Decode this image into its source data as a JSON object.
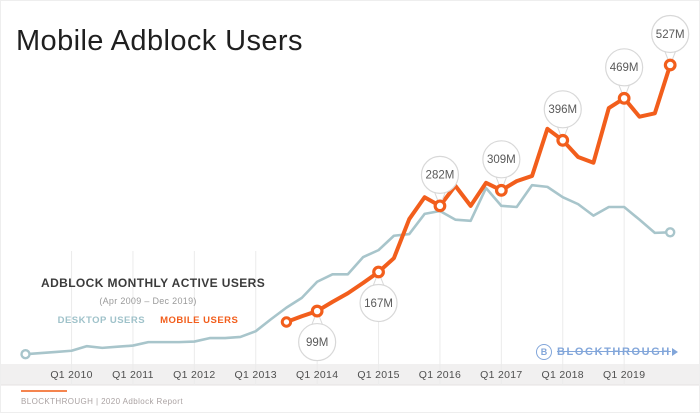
{
  "page": {
    "title": "Mobile Adblock Users"
  },
  "legend": {
    "heading": "ADBLOCK MONTHLY ACTIVE USERS",
    "subheading": "(Apr 2009 – Dec 2019)",
    "desktop_label": "DESKTOP USERS",
    "mobile_label": "MOBILE USERS"
  },
  "logo": {
    "initial": "B",
    "name": "BLOCKTHROUGH"
  },
  "footer": {
    "source": "BLOCKTHROUGH | 2020 Adblock Report"
  },
  "colors": {
    "mobile_orange": "#f25e1c",
    "desktop_teal_gray": "#a8c5cb",
    "balloon_border": "#d8d8d8",
    "balloon_text": "#5a5a5a",
    "axis_band": "#f1f0f0",
    "axis_band_edge": "#e5e2e2",
    "gridline": "#ebebeb",
    "tick_text": "#4f4f4f",
    "logo_blue": "#82a6da",
    "footer_divider_orange": "#f5854f"
  },
  "chart_data": {
    "type": "line",
    "title": "Mobile Adblock Users",
    "subtitle": "ADBLOCK MONTHLY ACTIVE USERS (Apr 2009 – Dec 2019)",
    "unit": "millions of monthly active users",
    "grid": "vertical-only",
    "legend_position": "left-middle",
    "x_tick_labels": [
      "Q1 2010",
      "Q1 2011",
      "Q1 2012",
      "Q1 2013",
      "Q1 2014",
      "Q1 2015",
      "Q1 2016",
      "Q1 2017",
      "Q1 2018",
      "Q1 2019"
    ],
    "quarters": [
      "Q2 2009",
      "Q3 2009",
      "Q4 2009",
      "Q1 2010",
      "Q2 2010",
      "Q3 2010",
      "Q4 2010",
      "Q1 2011",
      "Q2 2011",
      "Q3 2011",
      "Q4 2011",
      "Q1 2012",
      "Q2 2012",
      "Q3 2012",
      "Q4 2012",
      "Q1 2013",
      "Q2 2013",
      "Q3 2013",
      "Q4 2013",
      "Q1 2014",
      "Q2 2014",
      "Q3 2014",
      "Q4 2014",
      "Q1 2015",
      "Q2 2015",
      "Q3 2015",
      "Q4 2015",
      "Q1 2016",
      "Q2 2016",
      "Q3 2016",
      "Q4 2016",
      "Q1 2017",
      "Q2 2017",
      "Q3 2017",
      "Q4 2017",
      "Q1 2018",
      "Q2 2018",
      "Q3 2018",
      "Q4 2018",
      "Q1 2019",
      "Q2 2019",
      "Q3 2019",
      "Q4 2019"
    ],
    "series": [
      {
        "name": "Desktop Users",
        "color": "#a8c5cb",
        "start_quarter": "Q2 2009",
        "values": [
          24,
          26,
          28,
          30,
          38,
          35,
          37,
          39,
          45,
          45,
          45,
          46,
          52,
          52,
          54,
          64,
          85,
          105,
          122,
          150,
          163,
          163,
          193,
          205,
          230,
          233,
          268,
          273,
          258,
          256,
          313,
          282,
          280,
          318,
          315,
          297,
          285,
          265,
          280,
          280,
          258,
          235,
          236
        ]
      },
      {
        "name": "Mobile Users",
        "color": "#f25e1c",
        "start_quarter": "Q3 2013",
        "values": [
          80,
          90,
          99,
          115,
          130,
          148,
          167,
          191,
          259,
          297,
          282,
          317,
          282,
          322,
          309,
          325,
          334,
          416,
          396,
          367,
          357,
          452,
          469,
          437,
          443,
          527
        ]
      }
    ],
    "labeled_points": [
      {
        "label": "99M",
        "quarter": "Q1 2014",
        "value": 99,
        "balloon": "below"
      },
      {
        "label": "167M",
        "quarter": "Q1 2015",
        "value": 167,
        "balloon": "below"
      },
      {
        "label": "282M",
        "quarter": "Q1 2016",
        "value": 282,
        "balloon": "above"
      },
      {
        "label": "309M",
        "quarter": "Q1 2017",
        "value": 309,
        "balloon": "above"
      },
      {
        "label": "396M",
        "quarter": "Q1 2018",
        "value": 396,
        "balloon": "above"
      },
      {
        "label": "469M",
        "quarter": "Q1 2019",
        "value": 469,
        "balloon": "above"
      },
      {
        "label": "527M",
        "quarter": "Q4 2019",
        "value": 527,
        "balloon": "above"
      }
    ],
    "ylim": [
      0,
      560
    ]
  }
}
